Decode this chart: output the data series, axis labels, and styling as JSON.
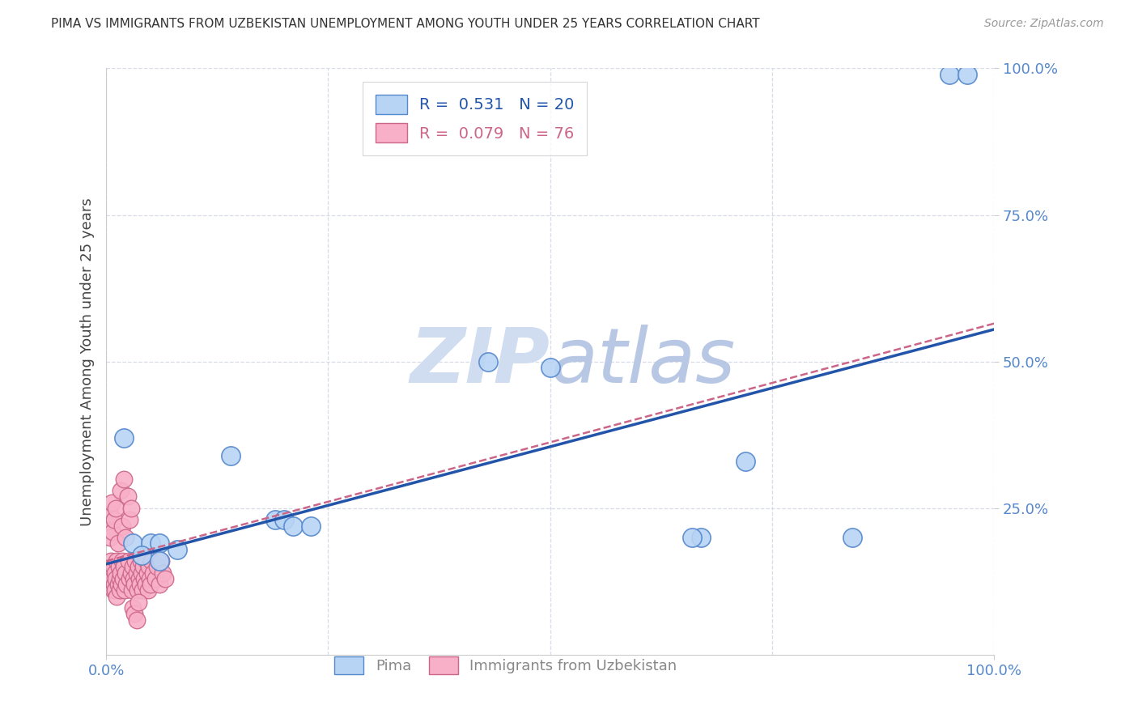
{
  "title": "PIMA VS IMMIGRANTS FROM UZBEKISTAN UNEMPLOYMENT AMONG YOUTH UNDER 25 YEARS CORRELATION CHART",
  "source": "Source: ZipAtlas.com",
  "ylabel": "Unemployment Among Youth under 25 years",
  "xlim": [
    0.0,
    1.0
  ],
  "ylim": [
    0.0,
    1.0
  ],
  "blue_R": 0.531,
  "blue_N": 20,
  "pink_R": 0.079,
  "pink_N": 76,
  "blue_color": "#b8d4f4",
  "pink_color": "#f8b0c8",
  "blue_edge": "#5588cc",
  "pink_edge": "#cc6688",
  "blue_line_color": "#2255aa",
  "pink_line_color": "#cc6688",
  "grid_color": "#d8dce8",
  "tick_color": "#5588cc",
  "watermark_color": "#d0dcf0",
  "blue_scatter_x": [
    0.02,
    0.14,
    0.19,
    0.2,
    0.21,
    0.23,
    0.03,
    0.05,
    0.06,
    0.08,
    0.04,
    0.06,
    0.5,
    0.72,
    0.67,
    0.84,
    0.66,
    0.95,
    0.43,
    0.97
  ],
  "blue_scatter_y": [
    0.37,
    0.34,
    0.23,
    0.23,
    0.22,
    0.22,
    0.19,
    0.19,
    0.19,
    0.18,
    0.17,
    0.16,
    0.49,
    0.33,
    0.2,
    0.2,
    0.2,
    0.99,
    0.5,
    0.99
  ],
  "pink_scatter_x": [
    0.005,
    0.005,
    0.006,
    0.007,
    0.008,
    0.008,
    0.009,
    0.01,
    0.01,
    0.011,
    0.012,
    0.012,
    0.013,
    0.014,
    0.015,
    0.015,
    0.016,
    0.017,
    0.018,
    0.019,
    0.02,
    0.021,
    0.022,
    0.023,
    0.025,
    0.026,
    0.028,
    0.029,
    0.03,
    0.031,
    0.032,
    0.033,
    0.034,
    0.035,
    0.036,
    0.037,
    0.038,
    0.039,
    0.04,
    0.041,
    0.042,
    0.043,
    0.044,
    0.045,
    0.046,
    0.047,
    0.048,
    0.049,
    0.05,
    0.051,
    0.053,
    0.055,
    0.057,
    0.06,
    0.062,
    0.064,
    0.066,
    0.003,
    0.004,
    0.004,
    0.006,
    0.007,
    0.009,
    0.011,
    0.013,
    0.016,
    0.018,
    0.02,
    0.022,
    0.024,
    0.026,
    0.028,
    0.03,
    0.032,
    0.034,
    0.036
  ],
  "pink_scatter_y": [
    0.16,
    0.14,
    0.12,
    0.13,
    0.11,
    0.15,
    0.12,
    0.14,
    0.11,
    0.13,
    0.1,
    0.16,
    0.12,
    0.15,
    0.13,
    0.11,
    0.14,
    0.12,
    0.16,
    0.13,
    0.15,
    0.11,
    0.14,
    0.12,
    0.16,
    0.13,
    0.14,
    0.11,
    0.15,
    0.13,
    0.12,
    0.16,
    0.14,
    0.11,
    0.15,
    0.13,
    0.12,
    0.16,
    0.14,
    0.11,
    0.15,
    0.13,
    0.12,
    0.16,
    0.14,
    0.11,
    0.15,
    0.13,
    0.12,
    0.16,
    0.14,
    0.13,
    0.15,
    0.12,
    0.16,
    0.14,
    0.13,
    0.22,
    0.24,
    0.2,
    0.26,
    0.21,
    0.23,
    0.25,
    0.19,
    0.28,
    0.22,
    0.3,
    0.2,
    0.27,
    0.23,
    0.25,
    0.08,
    0.07,
    0.06,
    0.09
  ],
  "blue_line_x0": 0.0,
  "blue_line_y0": 0.155,
  "blue_line_x1": 1.0,
  "blue_line_y1": 0.555,
  "pink_line_x0": 0.0,
  "pink_line_y0": 0.16,
  "pink_line_x1": 1.0,
  "pink_line_y1": 0.565
}
